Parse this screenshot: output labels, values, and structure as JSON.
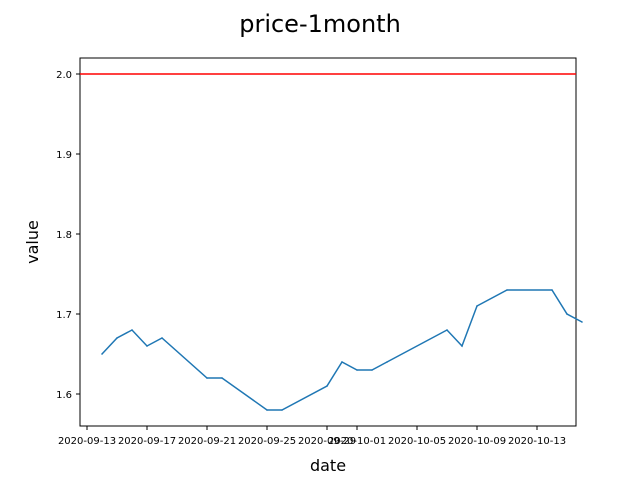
{
  "chart_data": {
    "type": "line",
    "title": "price-1month",
    "xlabel": "date",
    "ylabel": "value",
    "x_tick_labels": [
      "2020-09-13",
      "2020-09-17",
      "2020-09-21",
      "2020-09-25",
      "2020-09-29",
      "2020-10-01",
      "2020-10-05",
      "2020-10-09",
      "2020-10-13"
    ],
    "y_tick_labels": [
      "1.6",
      "1.7",
      "1.8",
      "1.9",
      "2.0"
    ],
    "ylim": [
      1.56,
      2.02
    ],
    "reference_line": {
      "value": 2.0,
      "color": "#ff0000"
    },
    "series": [
      {
        "color": "#1f77b4",
        "points": [
          {
            "x": "2020-09-14",
            "y": 1.65
          },
          {
            "x": "2020-09-15",
            "y": 1.67
          },
          {
            "x": "2020-09-16",
            "y": 1.68
          },
          {
            "x": "2020-09-17",
            "y": 1.66
          },
          {
            "x": "2020-09-18",
            "y": 1.67
          },
          {
            "x": "2020-09-21",
            "y": 1.62
          },
          {
            "x": "2020-09-22",
            "y": 1.62
          },
          {
            "x": "2020-09-25",
            "y": 1.58
          },
          {
            "x": "2020-09-26",
            "y": 1.58
          },
          {
            "x": "2020-09-29",
            "y": 1.61
          },
          {
            "x": "2020-09-30",
            "y": 1.64
          },
          {
            "x": "2020-10-01",
            "y": 1.63
          },
          {
            "x": "2020-10-02",
            "y": 1.63
          },
          {
            "x": "2020-10-03",
            "y": 1.64
          },
          {
            "x": "2020-10-07",
            "y": 1.68
          },
          {
            "x": "2020-10-08",
            "y": 1.66
          },
          {
            "x": "2020-10-09",
            "y": 1.71
          },
          {
            "x": "2020-10-11",
            "y": 1.73
          },
          {
            "x": "2020-10-14",
            "y": 1.73
          },
          {
            "x": "2020-10-15",
            "y": 1.7
          },
          {
            "x": "2020-10-16",
            "y": 1.69
          }
        ]
      }
    ],
    "grid": false,
    "legend": "none"
  }
}
